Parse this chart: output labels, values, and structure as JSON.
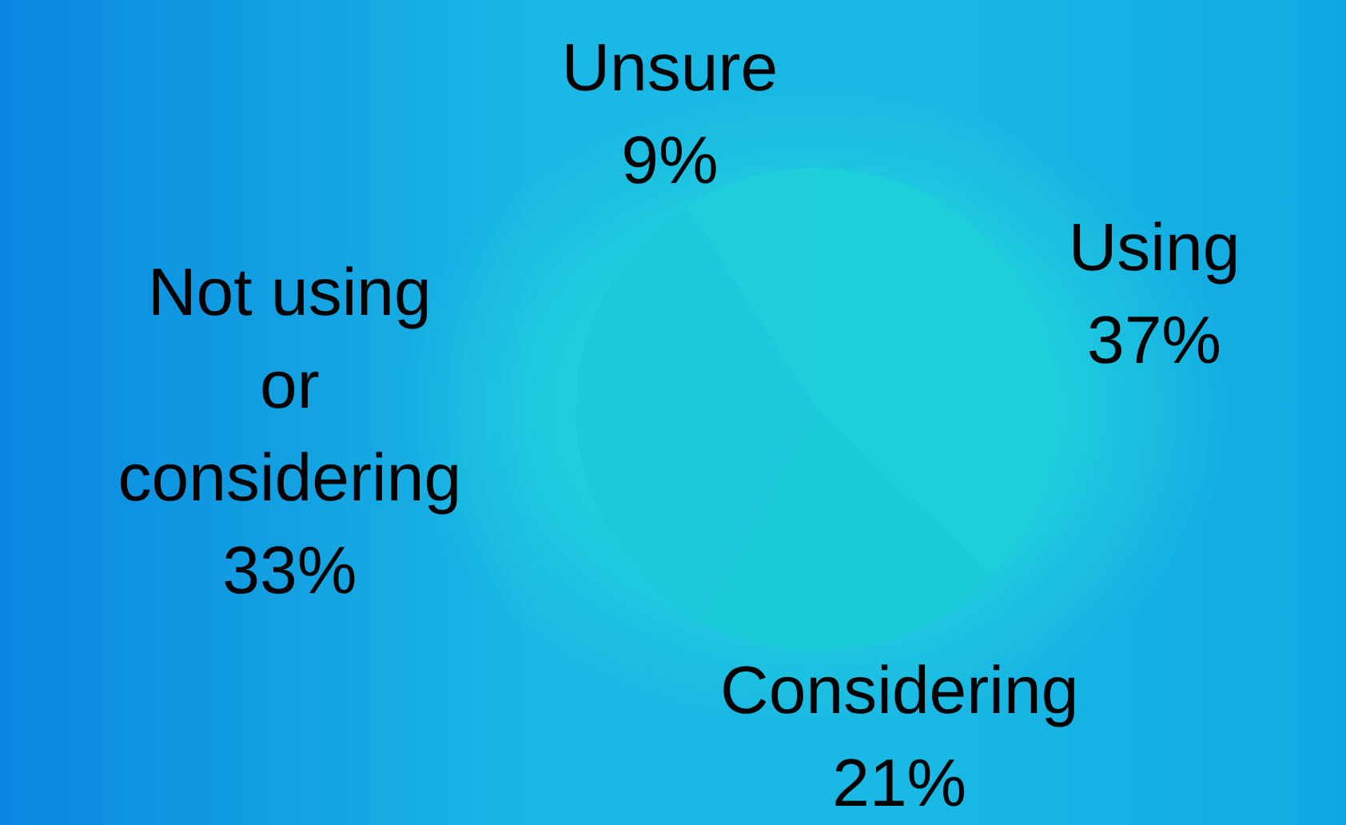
{
  "chart_data": {
    "type": "pie",
    "categories": [
      "Using",
      "Considering",
      "Not using or considering",
      "Unsure"
    ],
    "values": [
      37,
      21,
      33,
      9
    ],
    "value_labels": [
      "37%",
      "21%",
      "33%",
      "9%"
    ],
    "colors": [
      "#1ccfd8",
      "#1acad6",
      "#1ec8dc",
      "#20cedc"
    ],
    "legend": false
  }
}
